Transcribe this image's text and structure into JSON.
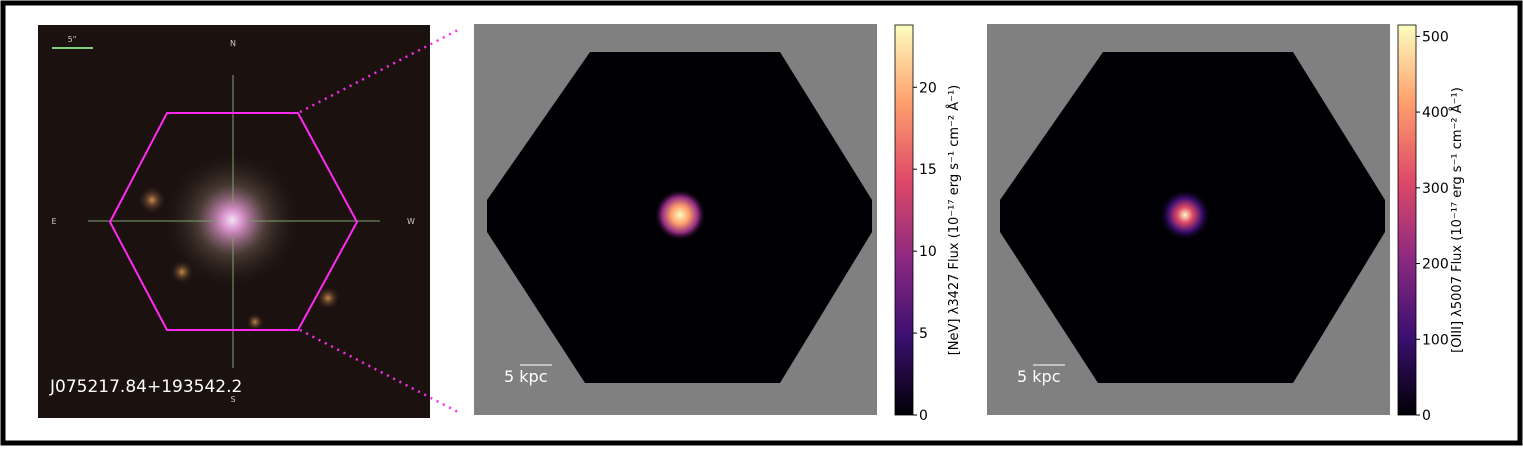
{
  "sdss_image": {
    "scale_label": "5\"",
    "compass": {
      "north": "N",
      "south": "S",
      "east": "E",
      "west": "W"
    },
    "object_name": "J075217.84+193542.2"
  },
  "panels": [
    {
      "scale_bar_label": "5 kpc",
      "colorbar": {
        "label": "[NeV] λ3427 Flux (10⁻¹⁷ erg s⁻¹ cm⁻² Å⁻¹)",
        "lim": [
          0,
          23.8
        ],
        "ticks": [
          0,
          5,
          10,
          15,
          20
        ]
      }
    },
    {
      "scale_bar_label": "5 kpc",
      "colorbar": {
        "label": "[OIII] λ5007 Flux (10⁻¹⁷ erg s⁻¹ cm⁻² Å⁻¹)",
        "lim": [
          0,
          515
        ],
        "ticks": [
          0,
          100,
          200,
          300,
          400,
          500
        ]
      }
    }
  ]
}
